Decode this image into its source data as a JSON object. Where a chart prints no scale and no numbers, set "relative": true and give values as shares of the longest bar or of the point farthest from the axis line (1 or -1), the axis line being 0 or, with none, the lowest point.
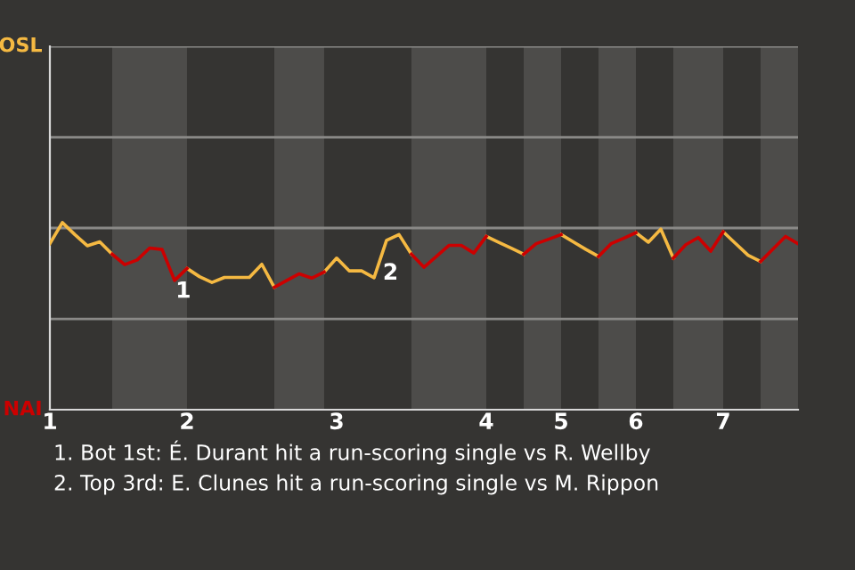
{
  "chart_data": {
    "type": "line",
    "relative": true,
    "categories": [
      "1",
      null,
      null,
      null,
      null,
      null,
      null,
      null,
      null,
      null,
      null,
      "2",
      null,
      null,
      null,
      null,
      null,
      null,
      null,
      null,
      null,
      null,
      null,
      "3",
      null,
      null,
      null,
      null,
      null,
      null,
      null,
      null,
      null,
      null,
      null,
      "4",
      null,
      null,
      null,
      null,
      null,
      "5",
      null,
      null,
      null,
      null,
      null,
      "6",
      null,
      null,
      null,
      null,
      null,
      null,
      "7",
      null,
      null,
      null,
      null,
      null,
      null
    ],
    "series": [
      {
        "color": "#f5b942",
        "values": [
          0.887,
          1,
          0.936,
          0.876,
          0.897,
          0.831,
          null,
          null,
          null,
          null,
          null,
          0.755,
          0.711,
          0.68,
          0.707,
          0.707,
          0.707,
          0.777,
          0.654,
          null,
          null,
          null,
          0.736,
          0.81,
          0.742,
          0.742,
          0.705,
          0.905,
          0.936,
          0.831,
          null,
          null,
          null,
          null,
          null,
          0.926,
          0.894,
          0.863,
          0.831,
          null,
          null,
          0.936,
          0.896,
          0.856,
          0.819,
          null,
          null,
          0.946,
          0.895,
          0.965,
          0.81,
          null,
          null,
          null,
          0.951,
          0.888,
          0.825,
          0.792,
          null,
          null,
          null
        ]
      },
      {
        "color": "#cc0000",
        "values": [
          null,
          null,
          null,
          null,
          null,
          0.831,
          0.775,
          0.8,
          0.864,
          0.856,
          0.691,
          0.755,
          null,
          null,
          null,
          null,
          null,
          null,
          0.654,
          0.691,
          0.726,
          0.703,
          0.736,
          null,
          null,
          null,
          null,
          null,
          null,
          0.831,
          0.761,
          0.819,
          0.878,
          0.878,
          0.837,
          0.926,
          null,
          null,
          0.831,
          0.887,
          0.911,
          0.936,
          null,
          null,
          0.819,
          0.887,
          0.916,
          0.946,
          null,
          null,
          0.81,
          0.882,
          0.92,
          0.847,
          0.951,
          null,
          null,
          0.792,
          0.859,
          0.926,
          0.887
        ]
      }
    ],
    "ref_lines": [
      {
        "axis": "y",
        "value": 0.485,
        "color": "#8a8987"
      },
      {
        "axis": "y",
        "value": 0.971,
        "color": "#8a8987"
      },
      {
        "axis": "y",
        "value": 1.456,
        "color": "#8a8987"
      },
      {
        "axis": "y",
        "value": 1.942,
        "color": "#8a8987"
      }
    ],
    "annotations": [
      "OSL",
      "NAI",
      "1",
      "2",
      "1. Bot 1st: É. Durant hit a run-scoring single vs R. Wellby",
      "2. Top 3rd: E. Clunes hit a run-scoring single vs M. Rippon"
    ]
  }
}
